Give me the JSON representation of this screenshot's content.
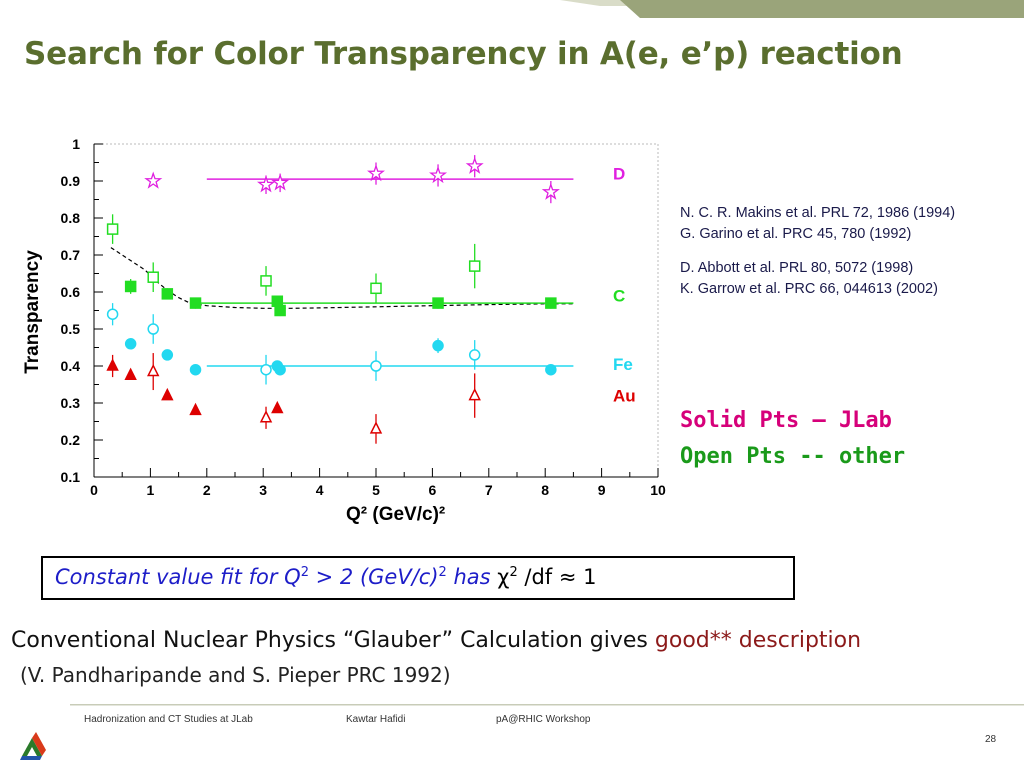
{
  "slide": {
    "title": "Search for Color Transparency in A(e, e’p) reaction",
    "references": {
      "group1": [
        "N. C. R. Makins et al. PRL 72, 1986 (1994)",
        "G. Garino et al.  PRC 45, 780 (1992)"
      ],
      "group2": [
        "D.  Abbott et al. PRL 80, 5072 (1998)",
        "K. Garrow et al.  PRC 66, 044613 (2002)"
      ]
    },
    "legend": {
      "solid": "Solid Pts – JLab",
      "open": "Open Pts -- other"
    },
    "fit_box": {
      "part1": "Constant value fit for Q",
      "sup1": "2",
      "part2": " > 2 (GeV/c)",
      "sup2": "2",
      "part3": "  has  ",
      "chi": "χ",
      "sup3": "2",
      "part4": " /df ≈ 1"
    },
    "glauber": {
      "text1": "Conventional Nuclear Physics “Glauber”  Calculation gives ",
      "red_text": "good** description",
      "ref": "(V. Pandharipande and S. Pieper PRC 1992)"
    },
    "footer": {
      "left": "Hadronization and CT Studies at JLab",
      "center": "Kawtar Hafidi",
      "right": "pA@RHIC Workshop",
      "page": "28"
    },
    "colors": {
      "title": "#5a6e2e",
      "D": "#e020e0",
      "C": "#22dd22",
      "Fe": "#22d8f0",
      "Au": "#dd0000"
    }
  },
  "chart_data": {
    "type": "scatter",
    "xlabel": "Q² (GeV/c)²",
    "ylabel": "Transparency",
    "xlim": [
      0,
      10
    ],
    "ylim": [
      0.1,
      1
    ],
    "xticks": [
      "0",
      "1",
      "2",
      "3",
      "4",
      "5",
      "6",
      "7",
      "8",
      "9",
      "10"
    ],
    "yticks": [
      "0.1",
      "0.2",
      "0.3",
      "0.4",
      "0.5",
      "0.6",
      "0.7",
      "0.8",
      "0.9",
      "1"
    ],
    "series": [
      {
        "name": "D",
        "color": "#e020e0",
        "fit": 0.905,
        "fit_range": [
          2,
          8.5
        ],
        "points": [
          {
            "x": 1.05,
            "y": 0.9,
            "e": 0,
            "open": true,
            "m": "star"
          },
          {
            "x": 3.05,
            "y": 0.89,
            "e": 0.025,
            "open": true,
            "m": "star"
          },
          {
            "x": 3.3,
            "y": 0.895,
            "e": 0.025,
            "open": true,
            "m": "star"
          },
          {
            "x": 5.0,
            "y": 0.92,
            "e": 0.03,
            "open": true,
            "m": "star"
          },
          {
            "x": 6.1,
            "y": 0.915,
            "e": 0.03,
            "open": true,
            "m": "star"
          },
          {
            "x": 6.75,
            "y": 0.94,
            "e": 0.03,
            "open": true,
            "m": "star"
          },
          {
            "x": 8.1,
            "y": 0.87,
            "e": 0.03,
            "open": true,
            "m": "star"
          }
        ]
      },
      {
        "name": "C",
        "color": "#22dd22",
        "fit": 0.57,
        "fit_range": [
          1.7,
          8.5
        ],
        "points": [
          {
            "x": 0.33,
            "y": 0.77,
            "e": 0.04,
            "open": true,
            "m": "square"
          },
          {
            "x": 0.65,
            "y": 0.615,
            "e": 0.02,
            "open": false,
            "m": "square"
          },
          {
            "x": 1.05,
            "y": 0.64,
            "e": 0.04,
            "open": true,
            "m": "square"
          },
          {
            "x": 1.3,
            "y": 0.595,
            "e": 0.015,
            "open": false,
            "m": "square"
          },
          {
            "x": 1.8,
            "y": 0.57,
            "e": 0.015,
            "open": false,
            "m": "square"
          },
          {
            "x": 3.05,
            "y": 0.63,
            "e": 0.04,
            "open": true,
            "m": "square"
          },
          {
            "x": 3.25,
            "y": 0.575,
            "e": 0.015,
            "open": false,
            "m": "square"
          },
          {
            "x": 3.3,
            "y": 0.55,
            "e": 0.015,
            "open": false,
            "m": "square"
          },
          {
            "x": 5.0,
            "y": 0.61,
            "e": 0.04,
            "open": true,
            "m": "square"
          },
          {
            "x": 6.1,
            "y": 0.57,
            "e": 0.015,
            "open": false,
            "m": "square"
          },
          {
            "x": 6.75,
            "y": 0.67,
            "e": 0.06,
            "open": true,
            "m": "square"
          },
          {
            "x": 8.1,
            "y": 0.57,
            "e": 0.015,
            "open": false,
            "m": "square"
          }
        ]
      },
      {
        "name": "Fe",
        "color": "#22d8f0",
        "fit": 0.4,
        "fit_range": [
          2,
          8.5
        ],
        "points": [
          {
            "x": 0.33,
            "y": 0.54,
            "e": 0.03,
            "open": true,
            "m": "circle"
          },
          {
            "x": 0.65,
            "y": 0.46,
            "e": 0.01,
            "open": false,
            "m": "circle"
          },
          {
            "x": 1.05,
            "y": 0.5,
            "e": 0.04,
            "open": true,
            "m": "circle"
          },
          {
            "x": 1.3,
            "y": 0.43,
            "e": 0.01,
            "open": false,
            "m": "circle"
          },
          {
            "x": 1.8,
            "y": 0.39,
            "e": 0.01,
            "open": false,
            "m": "circle"
          },
          {
            "x": 3.05,
            "y": 0.39,
            "e": 0.04,
            "open": true,
            "m": "circle"
          },
          {
            "x": 3.25,
            "y": 0.4,
            "e": 0.01,
            "open": false,
            "m": "circle"
          },
          {
            "x": 3.3,
            "y": 0.39,
            "e": 0.01,
            "open": false,
            "m": "circle"
          },
          {
            "x": 5.0,
            "y": 0.4,
            "e": 0.04,
            "open": true,
            "m": "circle"
          },
          {
            "x": 6.1,
            "y": 0.455,
            "e": 0.02,
            "open": false,
            "m": "circle"
          },
          {
            "x": 6.75,
            "y": 0.43,
            "e": 0.04,
            "open": true,
            "m": "circle"
          },
          {
            "x": 8.1,
            "y": 0.39,
            "e": 0.01,
            "open": false,
            "m": "circle"
          }
        ]
      },
      {
        "name": "Au",
        "color": "#dd0000",
        "fit": null,
        "points": [
          {
            "x": 0.33,
            "y": 0.4,
            "e": 0.03,
            "open": false,
            "m": "triangle"
          },
          {
            "x": 0.65,
            "y": 0.375,
            "e": 0,
            "open": false,
            "m": "triangle"
          },
          {
            "x": 1.05,
            "y": 0.385,
            "e": 0.05,
            "open": true,
            "m": "triangle"
          },
          {
            "x": 1.3,
            "y": 0.32,
            "e": 0,
            "open": false,
            "m": "triangle"
          },
          {
            "x": 1.8,
            "y": 0.28,
            "e": 0,
            "open": false,
            "m": "triangle"
          },
          {
            "x": 3.05,
            "y": 0.26,
            "e": 0.03,
            "open": true,
            "m": "triangle"
          },
          {
            "x": 3.25,
            "y": 0.285,
            "e": 0,
            "open": false,
            "m": "triangle"
          },
          {
            "x": 5.0,
            "y": 0.23,
            "e": 0.04,
            "open": true,
            "m": "triangle"
          },
          {
            "x": 6.75,
            "y": 0.32,
            "e": 0.06,
            "open": true,
            "m": "triangle"
          }
        ]
      }
    ],
    "glauber_curve": {
      "x": [
        0.3,
        0.5,
        0.7,
        0.9,
        1.1,
        1.3,
        1.5,
        1.7,
        2.0,
        2.5,
        3.0,
        3.5,
        4.0,
        5.0,
        6.0,
        7.0,
        8.0,
        8.5
      ],
      "y": [
        0.72,
        0.7,
        0.68,
        0.66,
        0.63,
        0.605,
        0.585,
        0.57,
        0.563,
        0.558,
        0.556,
        0.556,
        0.557,
        0.56,
        0.563,
        0.566,
        0.568,
        0.568
      ]
    },
    "labels": [
      "D",
      "C",
      "Fe",
      "Au"
    ]
  }
}
